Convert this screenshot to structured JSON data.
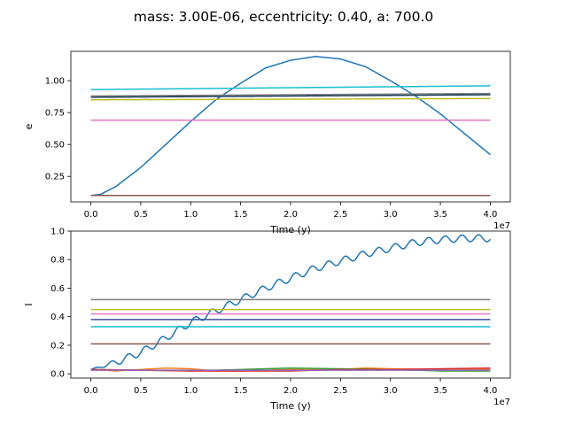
{
  "figure": {
    "suptitle": "mass: 3.00E-06, eccentricity: 0.40, a: 700.0"
  },
  "chart_data": [
    {
      "type": "line",
      "title": "",
      "xlabel": "Time (y)",
      "ylabel": "e",
      "x_offset_label": "1e7",
      "xlim": [
        -0.2,
        4.2
      ],
      "ylim": [
        0.05,
        1.23
      ],
      "xticks": [
        0,
        0.5,
        1,
        1.5,
        2,
        2.5,
        3,
        3.5,
        4
      ],
      "xtick_labels": [
        "0.0",
        "0.5",
        "1.0",
        "1.5",
        "2.0",
        "2.5",
        "3.0",
        "3.5",
        "4.0"
      ],
      "yticks": [
        0.25,
        0.5,
        0.75,
        1.0
      ],
      "ytick_labels": [
        "0.25",
        "0.50",
        "0.75",
        "1.00"
      ],
      "grid": false,
      "series": [
        {
          "color": "#1f77b4",
          "x": [
            0,
            0.1,
            0.25,
            0.5,
            0.75,
            1.0,
            1.25,
            1.5,
            1.75,
            2.0,
            2.25,
            2.5,
            2.75,
            3.0,
            3.25,
            3.5,
            3.75,
            4.0
          ],
          "y": [
            0.1,
            0.11,
            0.17,
            0.32,
            0.5,
            0.68,
            0.85,
            0.98,
            1.1,
            1.16,
            1.19,
            1.17,
            1.11,
            1.0,
            0.88,
            0.74,
            0.58,
            0.42
          ]
        },
        {
          "color": "#ff7f0e",
          "x": [
            0,
            4.0
          ],
          "y": [
            0.1,
            0.1
          ]
        },
        {
          "color": "#2ca02c",
          "x": [
            0,
            4.0
          ],
          "y": [
            0.1,
            0.1
          ]
        },
        {
          "color": "#d62728",
          "x": [
            0,
            4.0
          ],
          "y": [
            0.1,
            0.1
          ]
        },
        {
          "color": "#9467bd",
          "x": [
            0,
            4.0
          ],
          "y": [
            0.1,
            0.1
          ]
        },
        {
          "color": "#8c564b",
          "x": [
            0,
            4.0
          ],
          "y": [
            0.1,
            0.1
          ]
        },
        {
          "color": "#e377c2",
          "x": [
            0,
            4.0
          ],
          "y": [
            0.69,
            0.69
          ]
        },
        {
          "color": "#7f7f7f",
          "x": [
            0,
            4.0
          ],
          "y": [
            0.88,
            0.9
          ]
        },
        {
          "color": "#bcbd22",
          "x": [
            0,
            4.0
          ],
          "y": [
            0.85,
            0.86
          ]
        },
        {
          "color": "#17becf",
          "x": [
            0,
            4.0
          ],
          "y": [
            0.93,
            0.96
          ]
        },
        {
          "color": "#1f3d5c",
          "x": [
            0,
            4.0
          ],
          "y": [
            0.87,
            0.89
          ]
        }
      ]
    },
    {
      "type": "line",
      "title": "",
      "xlabel": "Time (y)",
      "ylabel": "I",
      "x_offset_label": "1e7",
      "xlim": [
        -0.2,
        4.2
      ],
      "ylim": [
        -0.03,
        1.0
      ],
      "xticks": [
        0,
        0.5,
        1,
        1.5,
        2,
        2.5,
        3,
        3.5,
        4
      ],
      "xtick_labels": [
        "0.0",
        "0.5",
        "1.0",
        "1.5",
        "2.0",
        "2.5",
        "3.0",
        "3.5",
        "4.0"
      ],
      "yticks": [
        0.0,
        0.2,
        0.4,
        0.6,
        0.8,
        1.0
      ],
      "ytick_labels": [
        "0.0",
        "0.2",
        "0.4",
        "0.6",
        "0.8",
        "1.0"
      ],
      "grid": false,
      "series": [
        {
          "color": "#1f77b4",
          "x": [
            0,
            0.25,
            0.5,
            0.75,
            1.0,
            1.25,
            1.5,
            1.75,
            2.0,
            2.25,
            2.5,
            2.75,
            3.0,
            3.25,
            3.5,
            3.75,
            4.0
          ],
          "y": [
            0.03,
            0.08,
            0.15,
            0.25,
            0.36,
            0.44,
            0.52,
            0.6,
            0.67,
            0.74,
            0.79,
            0.84,
            0.88,
            0.92,
            0.94,
            0.95,
            0.95
          ],
          "oscillation": {
            "amplitude": 0.025,
            "period": 0.167
          }
        },
        {
          "color": "#ff7f0e",
          "x": [
            0,
            0.25,
            0.5,
            0.75,
            1.0,
            1.25,
            1.5,
            2.0,
            2.5,
            2.75,
            3.0,
            3.5,
            4.0
          ],
          "y": [
            0.03,
            0.02,
            0.03,
            0.04,
            0.035,
            0.02,
            0.02,
            0.03,
            0.03,
            0.04,
            0.035,
            0.03,
            0.03
          ]
        },
        {
          "color": "#2ca02c",
          "x": [
            0,
            0.5,
            1.0,
            1.5,
            2.0,
            2.5,
            3.0,
            3.5,
            4.0
          ],
          "y": [
            0.03,
            0.025,
            0.02,
            0.03,
            0.04,
            0.035,
            0.03,
            0.02,
            0.02
          ]
        },
        {
          "color": "#d62728",
          "x": [
            0,
            0.5,
            1.0,
            1.5,
            2.0,
            2.5,
            3.0,
            3.5,
            4.0
          ],
          "y": [
            0.03,
            0.025,
            0.02,
            0.02,
            0.02,
            0.03,
            0.03,
            0.035,
            0.04
          ]
        },
        {
          "color": "#9467bd",
          "x": [
            0,
            4.0
          ],
          "y": [
            0.025,
            0.025
          ]
        },
        {
          "color": "#8c564b",
          "x": [
            0,
            4.0
          ],
          "y": [
            0.21,
            0.21
          ]
        },
        {
          "color": "#e377c2",
          "x": [
            0,
            4.0
          ],
          "y": [
            0.42,
            0.42
          ]
        },
        {
          "color": "#7f7f7f",
          "x": [
            0,
            4.0
          ],
          "y": [
            0.52,
            0.52
          ]
        },
        {
          "color": "#bcbd22",
          "x": [
            0,
            4.0
          ],
          "y": [
            0.45,
            0.45
          ]
        },
        {
          "color": "#17becf",
          "x": [
            0,
            4.0
          ],
          "y": [
            0.33,
            0.33
          ]
        },
        {
          "color": "#3a4fa0",
          "x": [
            0,
            4.0
          ],
          "y": [
            0.38,
            0.38
          ]
        }
      ]
    }
  ]
}
